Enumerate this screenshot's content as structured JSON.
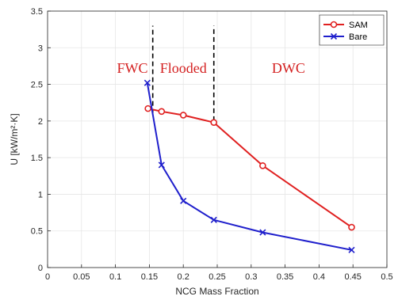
{
  "chart_data": {
    "type": "line",
    "xlabel": "NCG Mass Fraction",
    "ylabel": "U [kW/m²·K]",
    "xlim": [
      0,
      0.5
    ],
    "ylim": [
      0,
      3.5
    ],
    "xticks": [
      "0",
      "0.05",
      "0.1",
      "0.15",
      "0.2",
      "0.25",
      "0.3",
      "0.35",
      "0.4",
      "0.45",
      "0.5"
    ],
    "yticks": [
      "0",
      "0.5",
      "1",
      "1.5",
      "2",
      "2.5",
      "3",
      "3.5"
    ],
    "grid": true,
    "legend_position": "top-right",
    "series": [
      {
        "name": "SAM",
        "color": "#e02020",
        "marker": "circle",
        "x": [
          0.148,
          0.168,
          0.2,
          0.245,
          0.317,
          0.448
        ],
        "y": [
          2.17,
          2.13,
          2.08,
          1.98,
          1.39,
          0.55
        ]
      },
      {
        "name": "Bare",
        "color": "#1f1fcc",
        "marker": "x",
        "x": [
          0.147,
          0.168,
          0.2,
          0.245,
          0.317,
          0.448
        ],
        "y": [
          2.52,
          1.4,
          0.91,
          0.65,
          0.48,
          0.24
        ]
      }
    ],
    "vlines": [
      {
        "x": 0.155,
        "y_from": 2.1,
        "y_to": 3.3,
        "style": "dashed",
        "color": "#000000"
      },
      {
        "x": 0.245,
        "y_from": 2.0,
        "y_to": 3.3,
        "style": "dashed",
        "color": "#000000"
      }
    ],
    "annotations": [
      {
        "text": "FWC",
        "x": 0.125,
        "y": 2.72,
        "color": "#d42020"
      },
      {
        "text": "Flooded",
        "x": 0.2,
        "y": 2.72,
        "color": "#d42020"
      },
      {
        "text": "DWC",
        "x": 0.355,
        "y": 2.72,
        "color": "#d42020"
      }
    ]
  }
}
